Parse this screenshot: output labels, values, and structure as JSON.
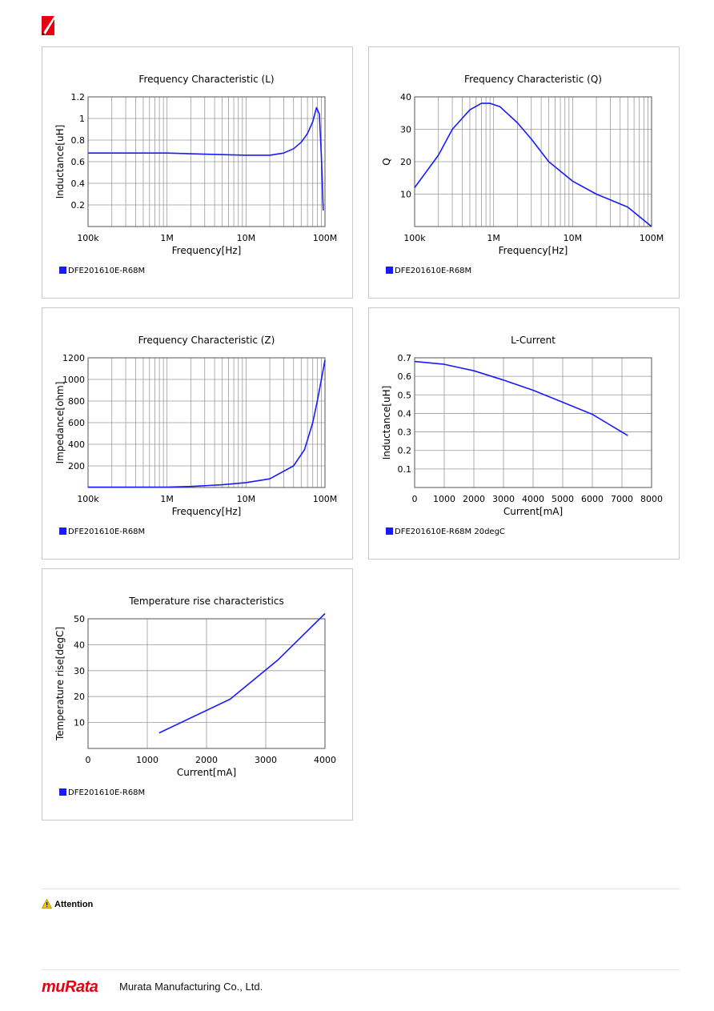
{
  "brand": {
    "logo_text": "muRata",
    "company": "Murata Manufacturing Co., Ltd."
  },
  "attention": {
    "label": "Attention"
  },
  "colors": {
    "series": "#1a1aff",
    "grid": "#9a9a9a",
    "brand_red": "#e60012"
  },
  "chart_data": [
    {
      "id": "freq-l",
      "type": "line",
      "title": "Frequency   Characteristic (L)",
      "xlabel": "Frequency[Hz]",
      "ylabel": "Inductance[uH]",
      "xscale": "log",
      "xlim": [
        100000,
        100000000
      ],
      "ylim": [
        0,
        1.2
      ],
      "xticks": [
        {
          "v": 100000,
          "label": "100k"
        },
        {
          "v": 1000000,
          "label": "1M"
        },
        {
          "v": 10000000,
          "label": "10M"
        },
        {
          "v": 100000000,
          "label": "100M"
        }
      ],
      "yticks": [
        {
          "v": 0.2,
          "label": "0.2"
        },
        {
          "v": 0.4,
          "label": "0.4"
        },
        {
          "v": 0.6,
          "label": "0.6"
        },
        {
          "v": 0.8,
          "label": "0.8"
        },
        {
          "v": 1,
          "label": "1"
        },
        {
          "v": 1.2,
          "label": "1.2"
        }
      ],
      "hgrid": [
        0.2,
        0.4,
        0.6,
        0.8,
        1.0
      ],
      "grid": true,
      "legend": "bottom-left",
      "series": [
        {
          "name": "DFE201610E-R68M",
          "x": [
            100000,
            150000,
            300000,
            1000000,
            3000000,
            10000000,
            20000000,
            30000000,
            40000000,
            50000000,
            60000000,
            70000000,
            78000000,
            85000000,
            90000000,
            95000000
          ],
          "y": [
            0.68,
            0.68,
            0.68,
            0.68,
            0.67,
            0.66,
            0.66,
            0.68,
            0.72,
            0.78,
            0.86,
            0.97,
            1.1,
            1.04,
            0.65,
            0.15
          ]
        }
      ]
    },
    {
      "id": "freq-q",
      "type": "line",
      "title": "Frequency   Characteristic (Q)",
      "xlabel": "Frequency[Hz]",
      "ylabel": "Q",
      "xscale": "log",
      "xlim": [
        100000,
        100000000
      ],
      "ylim": [
        0,
        40
      ],
      "xticks": [
        {
          "v": 100000,
          "label": "100k"
        },
        {
          "v": 1000000,
          "label": "1M"
        },
        {
          "v": 10000000,
          "label": "10M"
        },
        {
          "v": 100000000,
          "label": "100M"
        }
      ],
      "yticks": [
        {
          "v": 10,
          "label": "10"
        },
        {
          "v": 20,
          "label": "20"
        },
        {
          "v": 30,
          "label": "30"
        },
        {
          "v": 40,
          "label": "40"
        }
      ],
      "hgrid": [
        10,
        20,
        30
      ],
      "grid": true,
      "legend": "bottom-left",
      "series": [
        {
          "name": "DFE201610E-R68M",
          "x": [
            100000,
            200000,
            300000,
            500000,
            700000,
            900000,
            1200000,
            2000000,
            3000000,
            5000000,
            10000000,
            20000000,
            50000000,
            100000000
          ],
          "y": [
            12,
            22,
            30,
            36,
            38,
            38,
            37,
            32,
            27,
            20,
            14,
            10,
            6,
            0
          ]
        }
      ]
    },
    {
      "id": "freq-z",
      "type": "line",
      "title": "Frequency   Characteristic (Z)",
      "xlabel": "Frequency[Hz]",
      "ylabel": "Impedance[ohm]",
      "xscale": "log",
      "xlim": [
        100000,
        100000000
      ],
      "ylim": [
        0,
        1200
      ],
      "xticks": [
        {
          "v": 100000,
          "label": "100k"
        },
        {
          "v": 1000000,
          "label": "1M"
        },
        {
          "v": 10000000,
          "label": "10M"
        },
        {
          "v": 100000000,
          "label": "100M"
        }
      ],
      "yticks": [
        {
          "v": 200,
          "label": "200"
        },
        {
          "v": 400,
          "label": "400"
        },
        {
          "v": 600,
          "label": "600"
        },
        {
          "v": 800,
          "label": "800"
        },
        {
          "v": 1000,
          "label": "1000"
        },
        {
          "v": 1200,
          "label": "1200"
        }
      ],
      "hgrid": [
        200,
        400,
        600,
        800,
        1000
      ],
      "grid": true,
      "legend": "bottom-left",
      "series": [
        {
          "name": "DFE201610E-R68M",
          "x": [
            100000,
            1000000,
            2000000,
            5000000,
            10000000,
            20000000,
            40000000,
            55000000,
            70000000,
            80000000,
            90000000,
            100000000
          ],
          "y": [
            3,
            4,
            10,
            25,
            45,
            80,
            200,
            350,
            600,
            800,
            1000,
            1180
          ]
        }
      ]
    },
    {
      "id": "l-current",
      "type": "line",
      "title": "L-Current",
      "xlabel": "Current[mA]",
      "ylabel": "Inductance[uH]",
      "xscale": "linear",
      "xlim": [
        0,
        8000
      ],
      "ylim": [
        0,
        0.7
      ],
      "xticks": [
        {
          "v": 0,
          "label": "0"
        },
        {
          "v": 1000,
          "label": "1000"
        },
        {
          "v": 2000,
          "label": "2000"
        },
        {
          "v": 3000,
          "label": "3000"
        },
        {
          "v": 4000,
          "label": "4000"
        },
        {
          "v": 5000,
          "label": "5000"
        },
        {
          "v": 6000,
          "label": "6000"
        },
        {
          "v": 7000,
          "label": "7000"
        },
        {
          "v": 8000,
          "label": "8000"
        }
      ],
      "yticks": [
        {
          "v": 0.1,
          "label": "0.1"
        },
        {
          "v": 0.2,
          "label": "0.2"
        },
        {
          "v": 0.3,
          "label": "0.3"
        },
        {
          "v": 0.4,
          "label": "0.4"
        },
        {
          "v": 0.5,
          "label": "0.5"
        },
        {
          "v": 0.6,
          "label": "0.6"
        },
        {
          "v": 0.7,
          "label": "0.7"
        }
      ],
      "hgrid": [
        0.1,
        0.2,
        0.3,
        0.4,
        0.5,
        0.6
      ],
      "vgrid": [
        1000,
        2000,
        3000,
        4000,
        5000,
        6000,
        7000
      ],
      "grid": true,
      "legend": "bottom-left",
      "series": [
        {
          "name": "DFE201610E-R68M 20degC",
          "x": [
            0,
            1000,
            2000,
            3000,
            4000,
            5000,
            6000,
            7200
          ],
          "y": [
            0.68,
            0.665,
            0.63,
            0.58,
            0.525,
            0.46,
            0.395,
            0.28
          ]
        }
      ]
    },
    {
      "id": "temp-rise",
      "type": "line",
      "title": "Temperature rise characteristics",
      "xlabel": "Current[mA]",
      "ylabel": "Temperature rise[degC]",
      "xscale": "linear",
      "xlim": [
        0,
        4000
      ],
      "ylim": [
        0,
        50
      ],
      "xticks": [
        {
          "v": 0,
          "label": "0"
        },
        {
          "v": 1000,
          "label": "1000"
        },
        {
          "v": 2000,
          "label": "2000"
        },
        {
          "v": 3000,
          "label": "3000"
        },
        {
          "v": 4000,
          "label": "4000"
        }
      ],
      "yticks": [
        {
          "v": 10,
          "label": "10"
        },
        {
          "v": 20,
          "label": "20"
        },
        {
          "v": 30,
          "label": "30"
        },
        {
          "v": 40,
          "label": "40"
        },
        {
          "v": 50,
          "label": "50"
        }
      ],
      "hgrid": [
        10,
        20,
        30,
        40
      ],
      "vgrid": [
        1000,
        2000,
        3000
      ],
      "grid": true,
      "legend": "bottom-left",
      "series": [
        {
          "name": "DFE201610E-R68M",
          "x": [
            1200,
            2400,
            3200,
            4000
          ],
          "y": [
            6,
            19,
            34,
            52
          ]
        }
      ]
    }
  ]
}
